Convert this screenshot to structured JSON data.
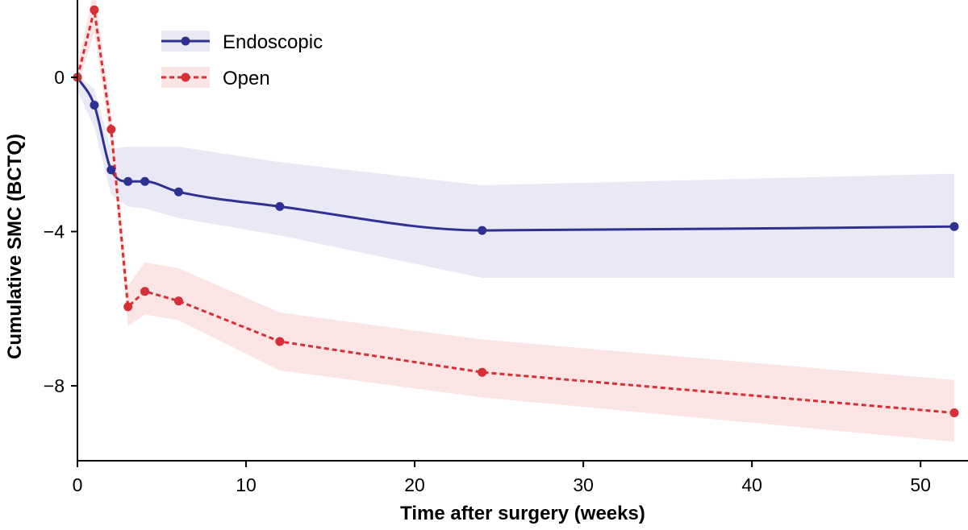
{
  "chart_data": {
    "type": "line",
    "title": "",
    "xlabel": "Time after surgery (weeks)",
    "ylabel": "Cumulative SMC (BCTQ)",
    "xlim": [
      0,
      52
    ],
    "ylim": [
      -9.7,
      1.9
    ],
    "xticks": [
      0,
      10,
      20,
      30,
      40,
      50
    ],
    "yticks": [
      0,
      -4,
      -8
    ],
    "xtick_labels": [
      "0",
      "10",
      "20",
      "30",
      "40",
      "50"
    ],
    "ytick_labels": [
      "0",
      "−4",
      "−8"
    ],
    "grid": false,
    "legend_position": "top-left",
    "series": [
      {
        "name": "Endoscopic",
        "color": "#2e3192",
        "band_color": "#e8e9f4",
        "line_style": "solid",
        "x": [
          0,
          1,
          2,
          3,
          4,
          6,
          12,
          24,
          52
        ],
        "y": [
          0,
          -0.72,
          -2.4,
          -2.7,
          -2.7,
          -2.97,
          -3.35,
          -3.97,
          -3.87
        ],
        "band_lower": [
          -0.35,
          -1.3,
          -3.05,
          -3.35,
          -3.4,
          -3.65,
          -4.1,
          -5.2,
          -5.2
        ],
        "band_upper": [
          0.05,
          -0.3,
          -1.85,
          -1.8,
          -1.8,
          -1.8,
          -2.2,
          -2.8,
          -2.5
        ]
      },
      {
        "name": "Open",
        "color": "#d62f36",
        "band_color": "#fbe4e4",
        "line_style": "dashed",
        "x": [
          0,
          1,
          2,
          3,
          4,
          6,
          12,
          24,
          52
        ],
        "y": [
          0,
          1.75,
          -1.35,
          -5.95,
          -5.55,
          -5.8,
          -6.85,
          -7.65,
          -8.7
        ],
        "band_lower": [
          -0.3,
          1.2,
          -1.8,
          -6.45,
          -6.15,
          -6.3,
          -7.6,
          -8.3,
          -9.45
        ],
        "band_upper": [
          0.3,
          2.3,
          -0.9,
          -5.4,
          -4.8,
          -4.95,
          -6.1,
          -6.8,
          -7.85
        ]
      }
    ]
  }
}
